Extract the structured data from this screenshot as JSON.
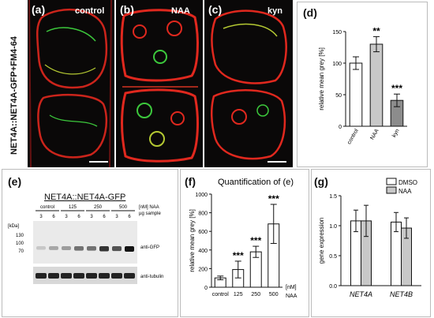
{
  "top_row": {
    "vertical_title": "NET4A::NET4A-GFP+FM4-64",
    "panels": [
      {
        "label": "(a)",
        "condition": "control"
      },
      {
        "label": "(b)",
        "condition": "NAA"
      },
      {
        "label": "(c)",
        "condition": "kyn"
      }
    ],
    "panel_d_label": "(d)"
  },
  "blot": {
    "label": "(e)",
    "title": "NET4A::NET4A-GFP",
    "groups": [
      "control",
      "125",
      "250",
      "500"
    ],
    "group_unit": "[nM] NAA",
    "sample_unit": "µg sample",
    "samples": [
      "3",
      "6",
      "3",
      "6",
      "3",
      "6",
      "3",
      "6"
    ],
    "kda_label": "[kDa]",
    "markers": [
      "130",
      "100",
      "70"
    ],
    "band_labels": [
      "anti-GFP",
      "anti-tubulin"
    ],
    "gfp_band_intensity": [
      0.15,
      0.3,
      0.35,
      0.55,
      0.55,
      0.85,
      0.7,
      1.0
    ]
  },
  "panel_f_label": "(f)",
  "panel_g_label": "(g)",
  "colors": {
    "control_bar": "#ffffff",
    "naa_bar": "#c8c8c8",
    "kyn_bar": "#8c8c8c",
    "dmso_bar": "#ffffff",
    "membrane_red": "#e0281e",
    "gfp_green": "#3cc83c"
  },
  "chart_data": [
    {
      "id": "d",
      "type": "bar",
      "categories": [
        "control",
        "NAA",
        "kyn"
      ],
      "values": [
        100,
        130,
        41
      ],
      "errors": [
        10,
        12,
        10
      ],
      "significance": [
        "",
        "**",
        "***"
      ],
      "ylabel": "relative mean grey [%]",
      "ylim": [
        0,
        150
      ],
      "yticks": [
        0,
        50,
        100,
        150
      ]
    },
    {
      "id": "f",
      "type": "bar",
      "title": "Quantification of (e)",
      "categories": [
        "control",
        "125",
        "250",
        "500"
      ],
      "values": [
        100,
        190,
        380,
        680
      ],
      "errors": [
        20,
        90,
        60,
        210
      ],
      "significance": [
        "",
        "***",
        "***",
        "***"
      ],
      "ylabel": "relative mean grey [%]",
      "xunit": "[nM] NAA",
      "ylim": [
        0,
        1000
      ],
      "yticks": [
        0,
        200,
        400,
        600,
        800,
        1000
      ]
    },
    {
      "id": "g",
      "type": "bar",
      "categories": [
        "NET4A",
        "NET4B"
      ],
      "series": [
        {
          "name": "DMSO",
          "values": [
            1.08,
            1.06
          ],
          "errors": [
            0.18,
            0.16
          ]
        },
        {
          "name": "NAA",
          "values": [
            1.08,
            0.96
          ],
          "errors": [
            0.26,
            0.17
          ]
        }
      ],
      "ylabel": "gene expression",
      "ylim": [
        0.0,
        1.5
      ],
      "yticks": [
        "0.0",
        "0.5",
        "1.0",
        "1.5"
      ],
      "legend": "top-right"
    }
  ]
}
